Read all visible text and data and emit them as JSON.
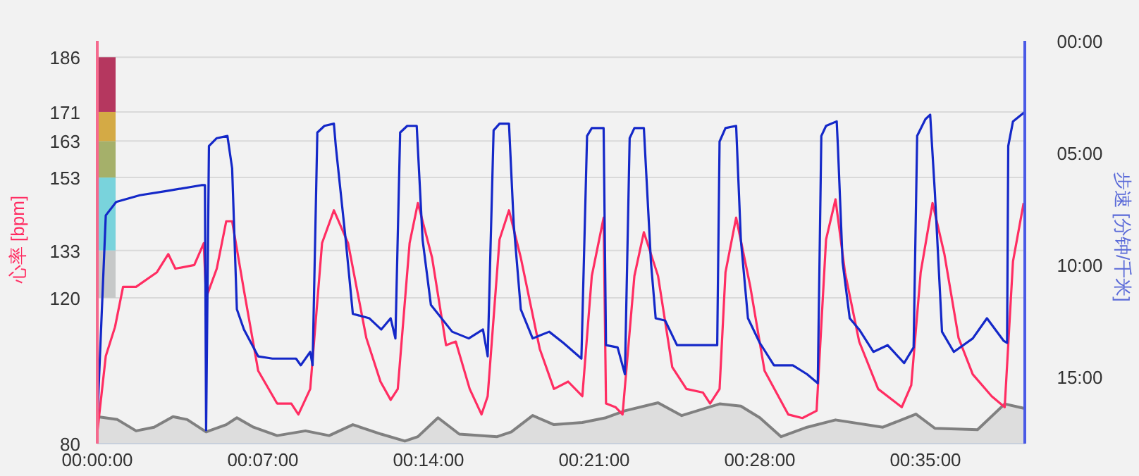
{
  "chart_data": {
    "type": "line",
    "ylabel": "心率 [bpm]",
    "y2label": "步速 [分钟/千米]",
    "xlim": [
      0,
      39.2
    ],
    "xticks": [
      {
        "value": 0,
        "label": "00:00:00"
      },
      {
        "value": 7,
        "label": "00:07:00"
      },
      {
        "value": 14,
        "label": "00:14:00"
      },
      {
        "value": 21,
        "label": "00:21:00"
      },
      {
        "value": 28,
        "label": "00:28:00"
      },
      {
        "value": 35,
        "label": "00:35:00"
      }
    ],
    "ylim": [
      80,
      190.5
    ],
    "yticks": [
      80,
      120,
      133,
      153,
      163,
      171,
      186
    ],
    "y2lim": [
      18,
      0
    ],
    "y2ticks": [
      {
        "value": 0,
        "label": "00:00"
      },
      {
        "value": 5,
        "label": "05:00"
      },
      {
        "value": 10,
        "label": "10:00"
      },
      {
        "value": 15,
        "label": "15:00"
      }
    ],
    "grid": "y",
    "series": [
      {
        "type": "area",
        "color": "#808080",
        "x": [
          0,
          0.85,
          1.64,
          2.4,
          3.2,
          3.8,
          4.6,
          5.45,
          5.9,
          6.6,
          7.6,
          8.8,
          9.8,
          10.8,
          12.0,
          13.0,
          13.55,
          14.4,
          15.3,
          16.9,
          17.5,
          18.4,
          19.3,
          20.5,
          21.5,
          22.3,
          23.7,
          24.7,
          26.3,
          27.2,
          28.0,
          28.9,
          30.0,
          31.2,
          33.2,
          34.6,
          35.4,
          37.2,
          38.35,
          39.15
        ],
        "values": [
          87.4,
          86.6,
          83.5,
          84.5,
          87.4,
          86.6,
          83.2,
          85.2,
          87.1,
          84.5,
          82.2,
          83.5,
          82.2,
          85.2,
          82.6,
          80.7,
          81.9,
          87.1,
          82.6,
          81.9,
          83.2,
          87.7,
          85.2,
          85.8,
          87.1,
          89,
          91.2,
          87.7,
          90.9,
          90.3,
          87.1,
          81.9,
          84.5,
          86.5,
          84.5,
          88.1,
          84.2,
          83.8,
          90.9,
          89.7
        ]
      },
      {
        "color": "#ff2d62",
        "x": [
          0,
          0.36,
          0.75,
          1.09,
          1.64,
          2.52,
          3.0,
          3.3,
          4.1,
          4.5,
          4.6,
          5.05,
          5.45,
          5.7,
          6.2,
          6.8,
          7.6,
          8.2,
          8.5,
          9.0,
          9.5,
          10.0,
          10.6,
          11.37,
          11.97,
          12.4,
          12.7,
          13.2,
          13.55,
          14.15,
          14.74,
          15.15,
          15.74,
          16.24,
          16.5,
          17.0,
          17.4,
          17.9,
          18.7,
          19.3,
          19.9,
          20.5,
          20.9,
          21.4,
          21.5,
          21.9,
          22.2,
          22.7,
          23.1,
          23.7,
          24.3,
          24.9,
          25.6,
          25.9,
          26.3,
          26.55,
          27.0,
          27.6,
          28.2,
          29.2,
          29.8,
          30.4,
          30.8,
          31.2,
          31.6,
          32.2,
          33.0,
          34.0,
          34.4,
          34.8,
          35.3,
          35.8,
          36.4,
          37.0,
          37.8,
          38.35,
          38.7,
          39.15
        ],
        "values": [
          83,
          104,
          112,
          123,
          123,
          127,
          132,
          128,
          129,
          135,
          120,
          128,
          141,
          141,
          122,
          100,
          91,
          91,
          88,
          95,
          135,
          144,
          135,
          109,
          97,
          92,
          95,
          135,
          146,
          131,
          107,
          108,
          95,
          88,
          93,
          136,
          144,
          131,
          106,
          95,
          97,
          93,
          126,
          142,
          91,
          90,
          88,
          126,
          138,
          126,
          101,
          95,
          94,
          91,
          95,
          127,
          142,
          123,
          100,
          88,
          87,
          89,
          136,
          147,
          127,
          108,
          95,
          90,
          96,
          127,
          146,
          132,
          109,
          99,
          93,
          90,
          130,
          146
        ]
      },
      {
        "color": "#1428c8",
        "axis": "y2",
        "x": [
          0,
          0.36,
          0.8,
          1.8,
          3.0,
          4.4,
          4.55,
          4.6,
          4.72,
          5.05,
          5.5,
          5.7,
          5.9,
          6.2,
          6.8,
          7.4,
          8.4,
          8.6,
          9.0,
          9.1,
          9.3,
          9.6,
          10.0,
          10.08,
          10.5,
          10.8,
          11.5,
          12.0,
          12.4,
          12.6,
          12.8,
          13.1,
          13.5,
          13.75,
          14.1,
          15.0,
          15.7,
          16.3,
          16.5,
          16.75,
          17.0,
          17.4,
          17.6,
          17.9,
          18.4,
          19.1,
          19.7,
          20.46,
          20.7,
          20.9,
          21.4,
          21.5,
          21.99,
          22.3,
          22.5,
          22.7,
          23.1,
          23.4,
          23.6,
          24.0,
          24.5,
          25.4,
          26.2,
          26.3,
          26.55,
          27.0,
          27.2,
          27.5,
          28.0,
          28.6,
          29.4,
          30.0,
          30.45,
          30.6,
          30.8,
          31.25,
          31.3,
          31.5,
          31.8,
          32.2,
          32.8,
          33.4,
          34.1,
          34.5,
          34.65,
          35.0,
          35.2,
          35.4,
          35.7,
          36.2,
          37.0,
          37.6,
          38.3,
          38.45,
          38.5,
          38.7,
          39.17
        ],
        "values": [
          17.0,
          7.8,
          7.2,
          6.9,
          6.7,
          6.45,
          6.45,
          17.4,
          4.7,
          4.35,
          4.25,
          5.7,
          12.0,
          12.9,
          14.1,
          14.2,
          14.2,
          14.5,
          13.9,
          14.5,
          4.1,
          3.8,
          3.7,
          4.7,
          8.9,
          12.2,
          12.4,
          12.9,
          12.4,
          13.3,
          4.1,
          3.8,
          3.8,
          8.9,
          11.8,
          13.0,
          13.3,
          12.9,
          14.1,
          4.0,
          3.7,
          3.7,
          8.2,
          12.0,
          13.3,
          13.0,
          13.5,
          14.2,
          4.25,
          3.9,
          3.9,
          13.6,
          13.7,
          14.9,
          4.35,
          3.9,
          3.9,
          9.9,
          12.4,
          12.5,
          13.6,
          13.6,
          13.6,
          4.5,
          3.9,
          3.8,
          8.9,
          12.4,
          13.5,
          14.5,
          14.5,
          14.9,
          15.3,
          4.25,
          3.8,
          3.6,
          4.7,
          9.9,
          12.4,
          12.9,
          13.9,
          13.6,
          14.4,
          13.7,
          4.25,
          3.5,
          3.3,
          6.8,
          13.0,
          13.9,
          13.3,
          12.4,
          13.4,
          13.5,
          4.7,
          3.6,
          3.2
        ]
      }
    ]
  }
}
